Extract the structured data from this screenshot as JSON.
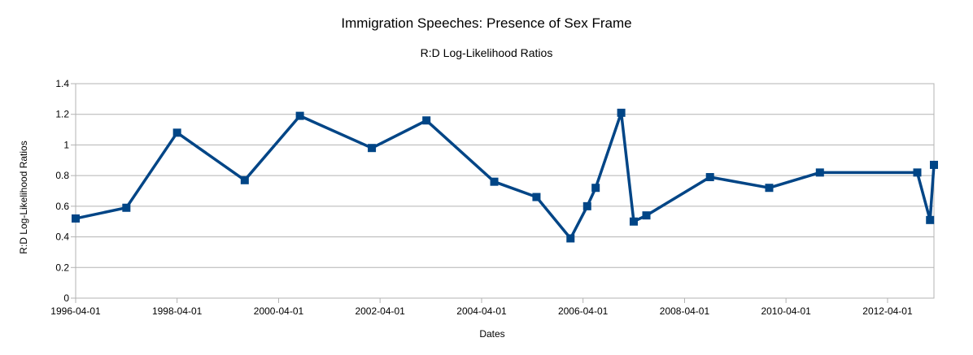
{
  "chart_data": {
    "type": "line",
    "title": "Immigration Speeches: Presence of Sex Frame",
    "subtitle": "R:D Log-Likelihood Ratios",
    "xlabel": "Dates",
    "ylabel": "R:D Log-Likelihood Ratios",
    "xlim": [
      "1996-04-01",
      "2013-03-01"
    ],
    "ylim": [
      0,
      1.4
    ],
    "x_ticks": [
      "1996-04-01",
      "1998-04-01",
      "2000-04-01",
      "2002-04-01",
      "2004-04-01",
      "2006-04-01",
      "2008-04-01",
      "2010-04-01",
      "2012-04-01"
    ],
    "y_ticks": [
      0,
      0.2,
      0.4,
      0.6,
      0.8,
      1,
      1.2,
      1.4
    ],
    "y_tick_labels": [
      "0",
      "0.2",
      "0.4",
      "0.6",
      "0.8",
      "1",
      "1.2",
      "1.4"
    ],
    "grid": "horizontal",
    "legend": "none",
    "series": [
      {
        "color": "#004586",
        "marker": "square",
        "points": [
          {
            "x": "1996-04-01",
            "y": 0.52
          },
          {
            "x": "1997-04-01",
            "y": 0.59
          },
          {
            "x": "1998-04-01",
            "y": 1.08
          },
          {
            "x": "1999-08-01",
            "y": 0.77
          },
          {
            "x": "2000-09-01",
            "y": 1.19
          },
          {
            "x": "2002-02-01",
            "y": 0.98
          },
          {
            "x": "2003-03-01",
            "y": 1.16
          },
          {
            "x": "2004-07-01",
            "y": 0.76
          },
          {
            "x": "2005-05-01",
            "y": 0.66
          },
          {
            "x": "2006-01-01",
            "y": 0.39
          },
          {
            "x": "2006-05-01",
            "y": 0.6
          },
          {
            "x": "2006-07-01",
            "y": 0.72
          },
          {
            "x": "2007-01-01",
            "y": 1.21
          },
          {
            "x": "2007-04-01",
            "y": 0.5
          },
          {
            "x": "2007-07-01",
            "y": 0.54
          },
          {
            "x": "2008-10-01",
            "y": 0.79
          },
          {
            "x": "2009-12-01",
            "y": 0.72
          },
          {
            "x": "2010-12-01",
            "y": 0.82
          },
          {
            "x": "2012-11-01",
            "y": 0.82
          },
          {
            "x": "2013-02-01",
            "y": 0.51
          },
          {
            "x": "2013-03-01",
            "y": 0.87
          }
        ]
      }
    ]
  }
}
